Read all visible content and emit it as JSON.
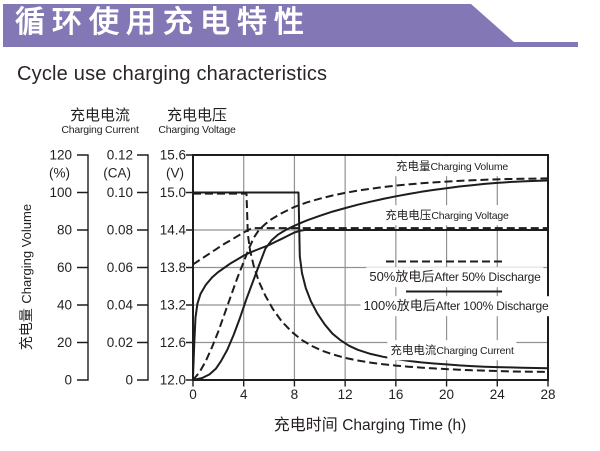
{
  "banner": {
    "title": "循环使用充电特性",
    "color": "#8377B5"
  },
  "page_title": "Cycle use charging characteristics",
  "colors": {
    "banner": "#8377B5",
    "ink": "#231F20",
    "grid": "#929292",
    "curve": "#1D1D1D"
  },
  "chart_data": {
    "type": "line",
    "x_axis": {
      "title_cn": "充电时间",
      "title_en": "Charging Time (h)",
      "range": [
        0,
        28
      ],
      "ticks": [
        "0",
        "4",
        "8",
        "12",
        "16",
        "20",
        "24",
        "28"
      ],
      "gridlines_at": [
        4,
        8,
        12,
        16,
        20,
        24
      ]
    },
    "y_axes": {
      "volume": {
        "title_cn": "充电量",
        "title_en": "Charging Volume",
        "unit": "(%)",
        "range": [
          0,
          120
        ],
        "ticks": [
          "120",
          "100",
          "80",
          "60",
          "40",
          "20",
          "0"
        ]
      },
      "current": {
        "title_cn": "充电电流",
        "title_en": "Charging Current",
        "unit": "(CA)",
        "range": [
          0,
          0.12
        ],
        "ticks": [
          "0.12",
          "0.10",
          "0.08",
          "0.06",
          "0.04",
          "0.02",
          "0"
        ]
      },
      "voltage": {
        "title_cn": "充电电压",
        "title_en": "Charging Voltage",
        "unit": "(V)",
        "range": [
          12.0,
          15.6
        ],
        "ticks": [
          "15.6",
          "15.0",
          "14.4",
          "13.8",
          "13.2",
          "12.6",
          "12.0"
        ],
        "gridlines_at": [
          14.4,
          13.8,
          13.2,
          12.6
        ]
      }
    },
    "curve_labels": {
      "volume": {
        "cn": "充电量",
        "en": "Charging Volume"
      },
      "voltage": {
        "cn": "充电电压",
        "en": "Charging Voltage"
      },
      "current": {
        "cn": "充电电流",
        "en": "Charging Current"
      }
    },
    "legend": [
      {
        "style": "dashed",
        "cn": "50%放电后",
        "en": "After 50% Discharge"
      },
      {
        "style": "solid",
        "cn": "100%放电后",
        "en": "After 100% Discharge"
      }
    ],
    "series": [
      {
        "name": "charging-volume-after-100-discharge",
        "axis": "volume",
        "style": "solid",
        "points": [
          [
            0,
            0
          ],
          [
            0.7,
            1
          ],
          [
            1.3,
            3
          ],
          [
            1.8,
            6
          ],
          [
            2.2,
            10
          ],
          [
            2.7,
            16
          ],
          [
            3.2,
            24
          ],
          [
            3.7,
            33
          ],
          [
            4.2,
            43
          ],
          [
            4.7,
            52
          ],
          [
            5.2,
            61
          ],
          [
            5.7,
            70
          ],
          [
            6.2,
            74.5
          ],
          [
            6.7,
            77.5
          ],
          [
            7.3,
            80
          ],
          [
            7.9,
            82
          ],
          [
            8.5,
            83.8
          ],
          [
            9,
            85.2
          ],
          [
            10,
            87.6
          ],
          [
            11,
            89.8
          ],
          [
            12,
            91.7
          ],
          [
            13,
            93.5
          ],
          [
            14,
            95.1
          ],
          [
            15,
            96.6
          ],
          [
            16,
            98
          ],
          [
            17,
            99.2
          ],
          [
            18,
            100.4
          ],
          [
            19,
            101.4
          ],
          [
            20,
            102.3
          ],
          [
            21,
            103.2
          ],
          [
            22,
            103.9
          ],
          [
            23,
            104.6
          ],
          [
            24,
            105.1
          ],
          [
            25,
            105.6
          ],
          [
            26,
            105.9
          ],
          [
            27,
            106.2
          ],
          [
            28,
            106.4
          ]
        ]
      },
      {
        "name": "charging-volume-after-50-discharge",
        "axis": "volume",
        "style": "dashed",
        "points": [
          [
            0,
            0
          ],
          [
            0.5,
            4
          ],
          [
            1,
            10
          ],
          [
            1.5,
            17.5
          ],
          [
            2,
            26
          ],
          [
            2.5,
            35.5
          ],
          [
            3,
            45
          ],
          [
            3.5,
            54.5
          ],
          [
            4,
            63
          ],
          [
            4.4,
            70
          ],
          [
            4.8,
            76
          ],
          [
            5.2,
            80
          ],
          [
            5.7,
            83.2
          ],
          [
            6.2,
            85.8
          ],
          [
            7,
            89
          ],
          [
            8,
            92.3
          ],
          [
            9,
            94.8
          ],
          [
            10,
            96.7
          ],
          [
            11,
            98.4
          ],
          [
            12,
            99.8
          ],
          [
            13,
            101
          ],
          [
            14,
            102
          ],
          [
            15,
            102.9
          ],
          [
            16,
            103.7
          ],
          [
            17,
            104.3
          ],
          [
            18,
            104.9
          ],
          [
            19,
            105.4
          ],
          [
            20,
            105.8
          ],
          [
            21,
            106.2
          ],
          [
            22,
            106.5
          ],
          [
            23,
            106.8
          ],
          [
            24,
            107
          ],
          [
            25,
            107.2
          ],
          [
            26,
            107.3
          ],
          [
            27,
            107.4
          ],
          [
            28,
            107.5
          ]
        ]
      },
      {
        "name": "charging-voltage-after-100-discharge",
        "axis": "voltage",
        "style": "solid",
        "points": [
          [
            0,
            12.05
          ],
          [
            0.1,
            12.6
          ],
          [
            0.2,
            13.0
          ],
          [
            0.35,
            13.22
          ],
          [
            0.6,
            13.38
          ],
          [
            1,
            13.52
          ],
          [
            1.5,
            13.64
          ],
          [
            2,
            13.73
          ],
          [
            2.5,
            13.8
          ],
          [
            3,
            13.87
          ],
          [
            3.5,
            13.93
          ],
          [
            4,
            13.99
          ],
          [
            4.5,
            14.04
          ],
          [
            5,
            14.08
          ],
          [
            5.5,
            14.12
          ],
          [
            6,
            14.16
          ],
          [
            6.5,
            14.21
          ],
          [
            7,
            14.26
          ],
          [
            7.5,
            14.31
          ],
          [
            8,
            14.36
          ],
          [
            8.5,
            14.39
          ],
          [
            8.8,
            14.4
          ],
          [
            28,
            14.4
          ]
        ]
      },
      {
        "name": "charging-voltage-after-50-discharge",
        "axis": "voltage",
        "style": "dashed",
        "points": [
          [
            0,
            13.85
          ],
          [
            0.6,
            13.93
          ],
          [
            1.2,
            14.01
          ],
          [
            1.8,
            14.09
          ],
          [
            2.4,
            14.17
          ],
          [
            3,
            14.24
          ],
          [
            3.5,
            14.3
          ],
          [
            4,
            14.36
          ],
          [
            4.35,
            14.4
          ],
          [
            4.7,
            14.43
          ],
          [
            28,
            14.43
          ]
        ]
      },
      {
        "name": "charging-current-after-100-discharge",
        "axis": "current",
        "style": "solid",
        "points": [
          [
            0,
            0.1
          ],
          [
            8.32,
            0.1
          ],
          [
            8.42,
            0.066
          ],
          [
            8.6,
            0.057
          ],
          [
            8.9,
            0.049
          ],
          [
            9.3,
            0.042
          ],
          [
            9.8,
            0.0355
          ],
          [
            10.4,
            0.0295
          ],
          [
            11,
            0.0247
          ],
          [
            11.6,
            0.0214
          ],
          [
            12.3,
            0.0183
          ],
          [
            13,
            0.0161
          ],
          [
            14,
            0.0139
          ],
          [
            15,
            0.0124
          ],
          [
            16,
            0.0112
          ],
          [
            17,
            0.0102
          ],
          [
            18,
            0.0094
          ],
          [
            19,
            0.0088
          ],
          [
            20,
            0.0083
          ],
          [
            21,
            0.0078
          ],
          [
            22,
            0.0074
          ],
          [
            23,
            0.0071
          ],
          [
            24,
            0.0069
          ],
          [
            25,
            0.0067
          ],
          [
            26,
            0.0065
          ],
          [
            27,
            0.0064
          ],
          [
            28,
            0.0063
          ]
        ]
      },
      {
        "name": "charging-current-after-50-discharge",
        "axis": "current",
        "style": "dashed",
        "points": [
          [
            0,
            0.0994
          ],
          [
            4.22,
            0.0994
          ],
          [
            4.32,
            0.078
          ],
          [
            4.5,
            0.069
          ],
          [
            4.8,
            0.0605
          ],
          [
            5.2,
            0.0525
          ],
          [
            5.7,
            0.045
          ],
          [
            6.3,
            0.0378
          ],
          [
            7,
            0.0312
          ],
          [
            7.8,
            0.0256
          ],
          [
            8.6,
            0.0213
          ],
          [
            9.4,
            0.0181
          ],
          [
            10.2,
            0.0156
          ],
          [
            11,
            0.0137
          ],
          [
            12,
            0.0118
          ],
          [
            13,
            0.0104
          ],
          [
            14,
            0.0093
          ],
          [
            15,
            0.0084
          ],
          [
            16,
            0.0077
          ],
          [
            17,
            0.0071
          ],
          [
            18,
            0.0066
          ],
          [
            19,
            0.0062
          ],
          [
            20,
            0.0058
          ],
          [
            21,
            0.0055
          ],
          [
            22,
            0.0052
          ],
          [
            23,
            0.005
          ],
          [
            24,
            0.0048
          ],
          [
            25,
            0.0046
          ],
          [
            26,
            0.0045
          ],
          [
            27,
            0.0044
          ],
          [
            28,
            0.0043
          ]
        ]
      }
    ]
  }
}
